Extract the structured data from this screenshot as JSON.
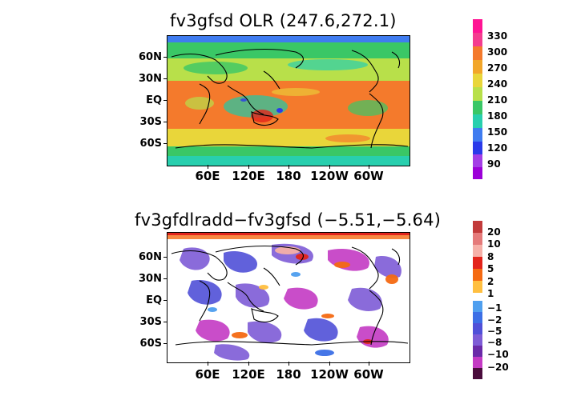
{
  "panel_top": {
    "title": "fv3gfsd OLR (247.6,272.1)",
    "lat_labels": [
      "60N",
      "30N",
      "EQ",
      "30S",
      "60S"
    ],
    "lon_labels": [
      "60E",
      "120E",
      "180",
      "120W",
      "60W"
    ],
    "colorbar": {
      "labels": [
        "330",
        "300",
        "270",
        "240",
        "210",
        "180",
        "150",
        "120",
        "90"
      ],
      "colors": [
        "#ff1493",
        "#f43c8f",
        "#f47a2c",
        "#f2a62a",
        "#e9d63a",
        "#b8e04a",
        "#3ac766",
        "#28cfae",
        "#3f7cf0",
        "#2a3aea",
        "#a43ee6",
        "#9c00d8"
      ]
    }
  },
  "panel_bottom": {
    "title": "fv3gfdlradd−fv3gfsd (−5.51,−5.64)",
    "lat_labels": [
      "60N",
      "30N",
      "EQ",
      "30S",
      "60S"
    ],
    "lon_labels": [
      "60E",
      "120E",
      "180",
      "120W",
      "60W"
    ],
    "colorbar": {
      "labels_pos": [
        "20",
        "10",
        "8",
        "5",
        "2",
        "1"
      ],
      "labels_neg": [
        "−1",
        "−2",
        "−5",
        "−8",
        "−10",
        "−20"
      ],
      "colors_pos": [
        "#c23a3a",
        "#e57a7a",
        "#f6b0a8",
        "#e3241b",
        "#f56a12",
        "#ffbf40"
      ],
      "colors_neg": [
        "#4f9fef",
        "#3c6fe6",
        "#5050d8",
        "#7e5cd6",
        "#6a2aa8",
        "#c43ac4",
        "#4a0c3c"
      ]
    }
  }
}
